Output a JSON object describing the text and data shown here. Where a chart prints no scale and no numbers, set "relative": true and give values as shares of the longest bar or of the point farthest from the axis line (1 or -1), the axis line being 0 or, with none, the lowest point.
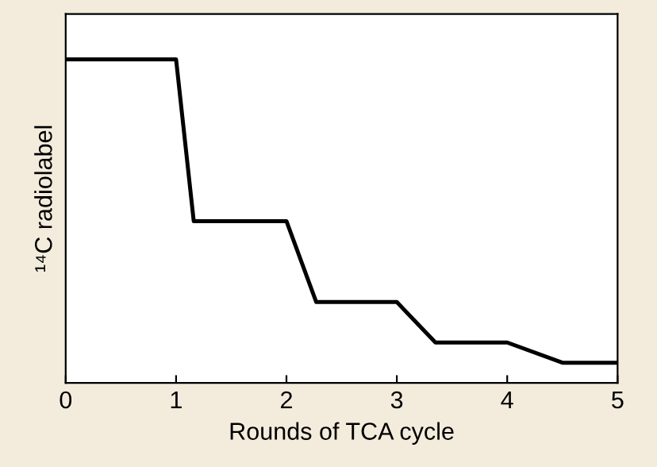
{
  "chart_data": {
    "type": "line",
    "relative": true,
    "xlabel": "Rounds of TCA cycle",
    "ylabel": "¹⁴C radiolabel",
    "xlim": [
      0,
      5
    ],
    "xticks": [
      0,
      1,
      2,
      3,
      4,
      5
    ],
    "series": [
      {
        "color": "#000000",
        "x": [
          0,
          1,
          1.16,
          2,
          2.27,
          3,
          3.35,
          4,
          4.5,
          5
        ],
        "values": [
          1,
          1,
          0.5,
          0.5,
          0.25,
          0.25,
          0.125,
          0.125,
          0.0625,
          0.0625
        ]
      }
    ],
    "grid": false,
    "legend": false,
    "marker": "none",
    "line_style": "solid"
  }
}
